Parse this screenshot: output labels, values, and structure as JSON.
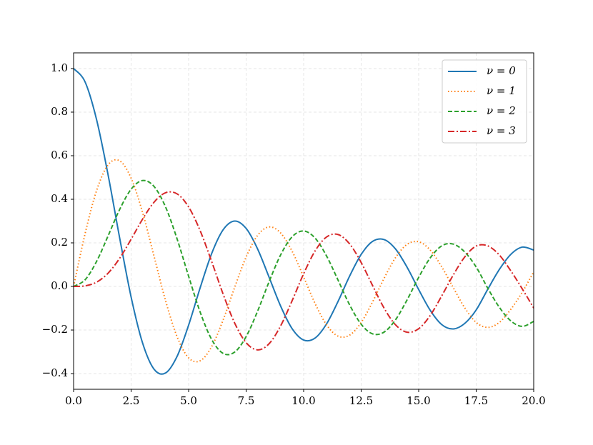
{
  "chart_data": {
    "type": "line",
    "x": [
      0,
      0.5,
      1,
      1.5,
      2,
      2.5,
      3,
      3.5,
      4,
      4.5,
      5,
      5.5,
      6,
      6.5,
      7,
      7.5,
      8,
      8.5,
      9,
      9.5,
      10,
      10.5,
      11,
      11.5,
      12,
      12.5,
      13,
      13.5,
      14,
      14.5,
      15,
      15.5,
      16,
      16.5,
      17,
      17.5,
      18,
      18.5,
      19,
      19.5,
      20
    ],
    "series": [
      {
        "name": "ν = 0",
        "color": "#1f77b4",
        "linestyle": "solid",
        "values": [
          1,
          0.9385,
          0.7652,
          0.5118,
          0.2239,
          -0.0484,
          -0.2601,
          -0.3801,
          -0.3971,
          -0.3205,
          -0.1776,
          -0.0068,
          0.1506,
          0.2601,
          0.3001,
          0.2663,
          0.1717,
          0.0419,
          -0.0903,
          -0.1939,
          -0.2459,
          -0.2366,
          -0.1712,
          -0.0677,
          0.0477,
          0.1469,
          0.2069,
          0.215,
          0.1711,
          0.0875,
          -0.0142,
          -0.1092,
          -0.1749,
          -0.195,
          -0.1699,
          -0.1078,
          -0.0134,
          0.0768,
          0.1466,
          0.1805,
          0.167
        ]
      },
      {
        "name": "ν = 1",
        "color": "#ff7f0e",
        "linestyle": "dotted",
        "values": [
          0,
          0.2423,
          0.4401,
          0.5579,
          0.5767,
          0.4971,
          0.3391,
          0.1374,
          -0.066,
          -0.2311,
          -0.3276,
          -0.3414,
          -0.2767,
          -0.1538,
          -0.0047,
          0.1352,
          0.2346,
          0.2731,
          0.2453,
          0.1613,
          0.0435,
          -0.0789,
          -0.1768,
          -0.2284,
          -0.2234,
          -0.1655,
          -0.0703,
          0.038,
          0.1334,
          0.1934,
          0.2051,
          0.1672,
          0.0904,
          -0.0047,
          -0.0977,
          -0.165,
          -0.188,
          -0.1655,
          -0.1057,
          -0.027,
          0.0668
        ]
      },
      {
        "name": "ν = 2",
        "color": "#2ca02c",
        "linestyle": "dashed",
        "values": [
          0,
          0.0306,
          0.1149,
          0.2321,
          0.3528,
          0.4461,
          0.4861,
          0.4586,
          0.3641,
          0.2178,
          0.0466,
          -0.1173,
          -0.2429,
          -0.3074,
          -0.3014,
          -0.2303,
          -0.113,
          0.0223,
          0.1448,
          0.2279,
          0.2546,
          0.2216,
          0.139,
          0.028,
          -0.0849,
          -0.1733,
          -0.2177,
          -0.2094,
          -0.152,
          -0.0609,
          0.0416,
          0.1307,
          0.1862,
          0.1944,
          0.1584,
          0.089,
          -0.0075,
          -0.0947,
          -0.1577,
          -0.1833,
          -0.1603
        ]
      },
      {
        "name": "ν = 3",
        "color": "#d62728",
        "linestyle": "dashdot",
        "values": [
          0,
          0.0026,
          0.0196,
          0.061,
          0.1289,
          0.2166,
          0.3091,
          0.3868,
          0.4302,
          0.4247,
          0.3648,
          0.2561,
          0.1148,
          -0.0353,
          -0.1676,
          -0.2581,
          -0.2911,
          -0.2626,
          -0.1809,
          -0.0653,
          0.0584,
          0.1633,
          0.2273,
          0.2381,
          0.1951,
          0.11,
          0.0033,
          -0.1,
          -0.1768,
          -0.2102,
          -0.194,
          -0.1335,
          -0.0438,
          0.0518,
          0.135,
          0.1853,
          0.1863,
          0.145,
          0.0725,
          -0.0106,
          -0.0989
        ]
      }
    ],
    "xlim": [
      0,
      20
    ],
    "ylim": [
      -0.472,
      1.072
    ],
    "xticks": [
      {
        "value": 0,
        "label": "0.0"
      },
      {
        "value": 2.5,
        "label": "2.5"
      },
      {
        "value": 5,
        "label": "5.0"
      },
      {
        "value": 7.5,
        "label": "7.5"
      },
      {
        "value": 10,
        "label": "10.0"
      },
      {
        "value": 12.5,
        "label": "12.5"
      },
      {
        "value": 15,
        "label": "15.0"
      },
      {
        "value": 17.5,
        "label": "17.5"
      },
      {
        "value": 20,
        "label": "20.0"
      }
    ],
    "yticks": [
      {
        "value": -0.4,
        "label": "−0.4"
      },
      {
        "value": -0.2,
        "label": "−0.2"
      },
      {
        "value": 0,
        "label": "0.0"
      },
      {
        "value": 0.2,
        "label": "0.2"
      },
      {
        "value": 0.4,
        "label": "0.4"
      },
      {
        "value": 0.6,
        "label": "0.6"
      },
      {
        "value": 0.8,
        "label": "0.8"
      },
      {
        "value": 1,
        "label": "1.0"
      }
    ],
    "grid": true,
    "legend": "upper right"
  }
}
